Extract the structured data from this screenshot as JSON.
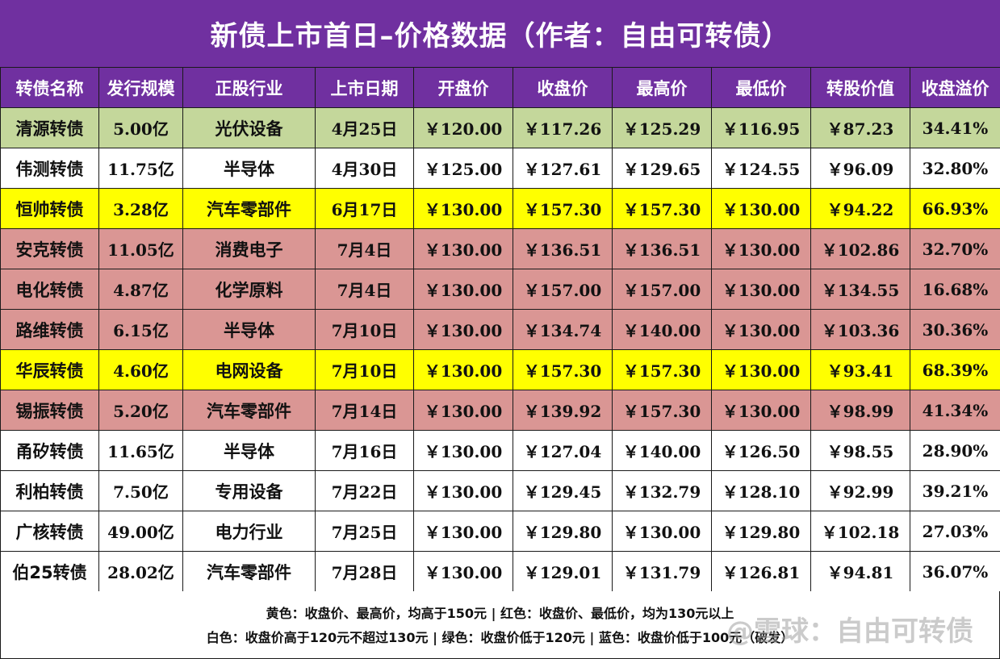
{
  "title": "新债上市首日–价格数据（作者：自由可转债）",
  "colors": {
    "header": "#7030a0",
    "green": "#c4d79b",
    "white": "#ffffff",
    "yellow": "#ffff00",
    "red": "#da9694"
  },
  "columns": [
    "转债名称",
    "发行规模",
    "正股行业",
    "上市日期",
    "开盘价",
    "收盘价",
    "最高价",
    "最低价",
    "转股价值",
    "收盘溢价"
  ],
  "rows": [
    {
      "highlight": "green",
      "cells": [
        "清源转债",
        "5.00亿",
        "光伏设备",
        "4月25日",
        "￥120.00",
        "￥117.26",
        "￥125.29",
        "￥116.95",
        "￥87.23",
        "34.41%"
      ]
    },
    {
      "highlight": "white",
      "cells": [
        "伟测转债",
        "11.75亿",
        "半导体",
        "4月30日",
        "￥125.00",
        "￥127.61",
        "￥129.65",
        "￥124.55",
        "￥96.09",
        "32.80%"
      ]
    },
    {
      "highlight": "yellow",
      "cells": [
        "恒帅转债",
        "3.28亿",
        "汽车零部件",
        "6月17日",
        "￥130.00",
        "￥157.30",
        "￥157.30",
        "￥130.00",
        "￥94.22",
        "66.93%"
      ]
    },
    {
      "highlight": "red",
      "cells": [
        "安克转债",
        "11.05亿",
        "消费电子",
        "7月4日",
        "￥130.00",
        "￥136.51",
        "￥136.51",
        "￥130.00",
        "￥102.86",
        "32.70%"
      ]
    },
    {
      "highlight": "red",
      "cells": [
        "电化转债",
        "4.87亿",
        "化学原料",
        "7月4日",
        "￥130.00",
        "￥157.00",
        "￥157.00",
        "￥130.00",
        "￥134.55",
        "16.68%"
      ]
    },
    {
      "highlight": "red",
      "cells": [
        "路维转债",
        "6.15亿",
        "半导体",
        "7月10日",
        "￥130.00",
        "￥134.74",
        "￥140.00",
        "￥130.00",
        "￥103.36",
        "30.36%"
      ]
    },
    {
      "highlight": "yellow",
      "cells": [
        "华辰转债",
        "4.60亿",
        "电网设备",
        "7月10日",
        "￥130.00",
        "￥157.30",
        "￥157.30",
        "￥130.00",
        "￥93.41",
        "68.39%"
      ]
    },
    {
      "highlight": "red",
      "cells": [
        "锡振转债",
        "5.20亿",
        "汽车零部件",
        "7月14日",
        "￥130.00",
        "￥139.92",
        "￥157.30",
        "￥130.00",
        "￥98.99",
        "41.34%"
      ]
    },
    {
      "highlight": "white",
      "cells": [
        "甬矽转债",
        "11.65亿",
        "半导体",
        "7月16日",
        "￥130.00",
        "￥127.04",
        "￥140.00",
        "￥126.50",
        "￥98.55",
        "28.90%"
      ]
    },
    {
      "highlight": "white",
      "cells": [
        "利柏转债",
        "7.50亿",
        "专用设备",
        "7月22日",
        "￥130.00",
        "￥129.45",
        "￥132.79",
        "￥128.10",
        "￥92.99",
        "39.21%"
      ]
    },
    {
      "highlight": "white",
      "cells": [
        "广核转债",
        "49.00亿",
        "电力行业",
        "7月25日",
        "￥130.00",
        "￥129.80",
        "￥130.00",
        "￥129.80",
        "￥102.18",
        "27.03%"
      ]
    },
    {
      "highlight": "white",
      "cells": [
        "伯25转债",
        "28.02亿",
        "汽车零部件",
        "7月28日",
        "￥130.00",
        "￥129.01",
        "￥131.79",
        "￥126.81",
        "￥94.81",
        "36.07%"
      ]
    }
  ],
  "legend": {
    "line1": "黄色：收盘价、最高价，均高于150元 | 红色：收盘价、最低价，均为130元以上",
    "line2": "白色：收盘价高于120元不超过130元 | 绿色：收盘价低于120元  | 蓝色：收盘价低于100元（破发）"
  },
  "watermark": "@雪球：自由可转债"
}
